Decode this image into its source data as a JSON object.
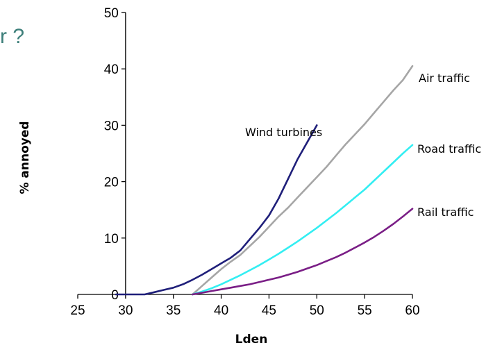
{
  "corner_text": "r ?",
  "colors": {
    "corner_text": "#3d7f7a",
    "axis": "#000000",
    "wind": "#1f1f7a",
    "air": "#a6a6a6",
    "road": "#33eef2",
    "rail": "#7a1e86"
  },
  "chart_data": {
    "type": "line",
    "xlabel": "Lden",
    "ylabel": "% annoyed",
    "xlim": [
      25,
      60
    ],
    "ylim": [
      0,
      50
    ],
    "xticks": [
      "25",
      "30",
      "35",
      "40",
      "45",
      "50",
      "55",
      "60"
    ],
    "yticks": [
      "0",
      "10",
      "20",
      "30",
      "40",
      "50"
    ],
    "grid": false,
    "legend": "inline-labels",
    "series": [
      {
        "name": "Wind turbines",
        "color_key": "wind",
        "x": [
          29,
          30,
          31,
          32,
          33,
          34,
          35,
          36,
          37,
          38,
          39,
          40,
          41,
          42,
          43,
          44,
          45,
          46,
          47,
          48,
          49,
          50
        ],
        "y": [
          0,
          0,
          0,
          0,
          0.4,
          0.8,
          1.2,
          1.8,
          2.6,
          3.5,
          4.5,
          5.5,
          6.5,
          7.8,
          9.8,
          11.8,
          14,
          17,
          20.5,
          24,
          27,
          30
        ]
      },
      {
        "name": "Air traffic",
        "color_key": "air",
        "x": [
          37,
          38,
          39,
          40,
          41,
          42,
          43,
          44,
          45,
          46,
          47,
          48,
          49,
          50,
          51,
          52,
          53,
          54,
          55,
          56,
          57,
          58,
          59,
          60
        ],
        "y": [
          0,
          1.5,
          3,
          4.5,
          5.8,
          7,
          8.6,
          10.2,
          12,
          13.8,
          15.4,
          17.2,
          19,
          20.8,
          22.6,
          24.6,
          26.6,
          28.4,
          30.2,
          32.2,
          34.2,
          36.2,
          38,
          40.5
        ]
      },
      {
        "name": "Road traffic",
        "color_key": "road",
        "x": [
          37,
          38,
          39,
          40,
          41,
          42,
          43,
          44,
          45,
          46,
          47,
          48,
          49,
          50,
          51,
          52,
          53,
          54,
          55,
          56,
          57,
          58,
          59,
          60
        ],
        "y": [
          0,
          0.5,
          1.1,
          1.8,
          2.6,
          3.4,
          4.3,
          5.2,
          6.2,
          7.2,
          8.3,
          9.4,
          10.6,
          11.8,
          13.1,
          14.4,
          15.8,
          17.2,
          18.6,
          20.2,
          21.8,
          23.4,
          25,
          26.5
        ]
      },
      {
        "name": "Rail traffic",
        "color_key": "rail",
        "x": [
          37,
          38,
          39,
          40,
          41,
          42,
          43,
          44,
          45,
          46,
          47,
          48,
          49,
          50,
          51,
          52,
          53,
          54,
          55,
          56,
          57,
          58,
          59,
          60
        ],
        "y": [
          0,
          0.3,
          0.6,
          0.9,
          1.2,
          1.5,
          1.8,
          2.2,
          2.6,
          3.0,
          3.5,
          4.0,
          4.6,
          5.2,
          5.9,
          6.6,
          7.4,
          8.3,
          9.2,
          10.2,
          11.3,
          12.5,
          13.8,
          15.2
        ]
      }
    ]
  }
}
